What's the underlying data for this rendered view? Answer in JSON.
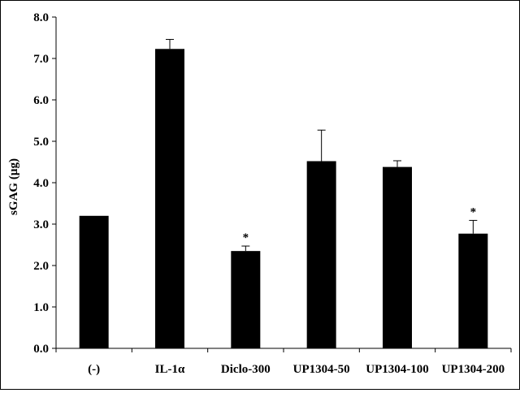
{
  "chart_data": {
    "type": "bar",
    "title": "",
    "xlabel": "",
    "ylabel": "sGAG  (µg)",
    "ylim": [
      0,
      8
    ],
    "yticks": [
      "0.0",
      "1.0",
      "2.0",
      "3.0",
      "4.0",
      "5.0",
      "6.0",
      "7.0",
      "8.0"
    ],
    "categories": [
      "(-)",
      "IL-1α",
      "Diclo-300",
      "UP1304-50",
      "UP1304-100",
      "UP1304-200"
    ],
    "values": [
      3.2,
      7.23,
      2.35,
      4.52,
      4.38,
      2.77
    ],
    "error_upper": [
      0,
      0.23,
      0.12,
      0.75,
      0.15,
      0.32
    ],
    "significance": [
      "",
      "",
      "*",
      "",
      "",
      "*"
    ],
    "grid": false,
    "legend": "none",
    "colors": {
      "bar": "#000000",
      "axis": "#000000",
      "background": "#ffffff"
    }
  }
}
